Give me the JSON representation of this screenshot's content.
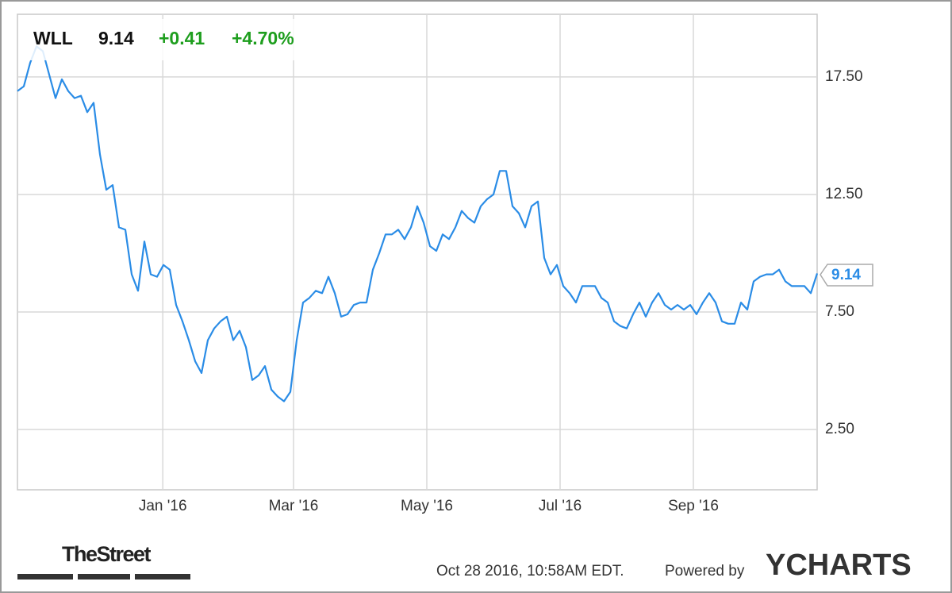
{
  "chart_data": {
    "type": "line",
    "ticker": "WLL",
    "price": "9.14",
    "change": "+0.41",
    "change_pct": "+4.70%",
    "values": [
      16.9,
      17.1,
      18.1,
      18.8,
      18.6,
      17.6,
      16.6,
      17.4,
      16.9,
      16.6,
      16.7,
      16.0,
      16.4,
      14.2,
      12.7,
      12.9,
      11.1,
      11.0,
      9.1,
      8.4,
      10.5,
      9.1,
      9.0,
      9.5,
      9.3,
      7.8,
      7.1,
      6.3,
      5.4,
      4.9,
      6.3,
      6.8,
      7.1,
      7.3,
      6.3,
      6.7,
      6.0,
      4.6,
      4.8,
      5.2,
      4.2,
      3.9,
      3.7,
      4.1,
      6.3,
      7.9,
      8.1,
      8.4,
      8.3,
      9.0,
      8.3,
      7.3,
      7.4,
      7.8,
      7.9,
      7.9,
      9.3,
      10.0,
      10.8,
      10.8,
      11.0,
      10.6,
      11.1,
      12.0,
      11.3,
      10.3,
      10.1,
      10.8,
      10.6,
      11.1,
      11.8,
      11.5,
      11.3,
      12.0,
      12.3,
      12.5,
      13.5,
      13.5,
      12.0,
      11.7,
      11.1,
      12.0,
      12.2,
      9.8,
      9.1,
      9.5,
      8.6,
      8.3,
      7.9,
      8.6,
      8.6,
      8.6,
      8.1,
      7.9,
      7.1,
      6.9,
      6.8,
      7.4,
      7.9,
      7.3,
      7.9,
      8.3,
      7.8,
      7.6,
      7.8,
      7.6,
      7.8,
      7.4,
      7.9,
      8.3,
      7.9,
      7.1,
      7.0,
      7.0,
      7.9,
      7.6,
      8.8,
      9.0,
      9.1,
      9.1,
      9.3,
      8.8,
      8.6,
      8.6,
      8.6,
      8.3,
      9.14
    ],
    "color": "#2a8ce6",
    "change_color": "#1e9e1e",
    "xlim": [
      0,
      126
    ],
    "xticks": [
      {
        "value": 22.9,
        "label": "Jan '16"
      },
      {
        "value": 43.5,
        "label": "Mar '16"
      },
      {
        "value": 64.5,
        "label": "May '16"
      },
      {
        "value": 85.5,
        "label": "Jul '16"
      },
      {
        "value": 106.5,
        "label": "Sep '16"
      }
    ],
    "ylim": [
      0,
      20.2
    ],
    "yticks": [
      {
        "value": 2.5,
        "label": "2.50"
      },
      {
        "value": 7.5,
        "label": "7.50"
      },
      {
        "value": 12.5,
        "label": "12.50"
      },
      {
        "value": 17.5,
        "label": "17.50"
      }
    ],
    "grid": true
  },
  "footer": {
    "source_logo": "TheStreet",
    "timestamp": "Oct 28 2016, 10:58AM EDT.",
    "powered_by": "Powered by",
    "brand": "YCHARTS"
  }
}
